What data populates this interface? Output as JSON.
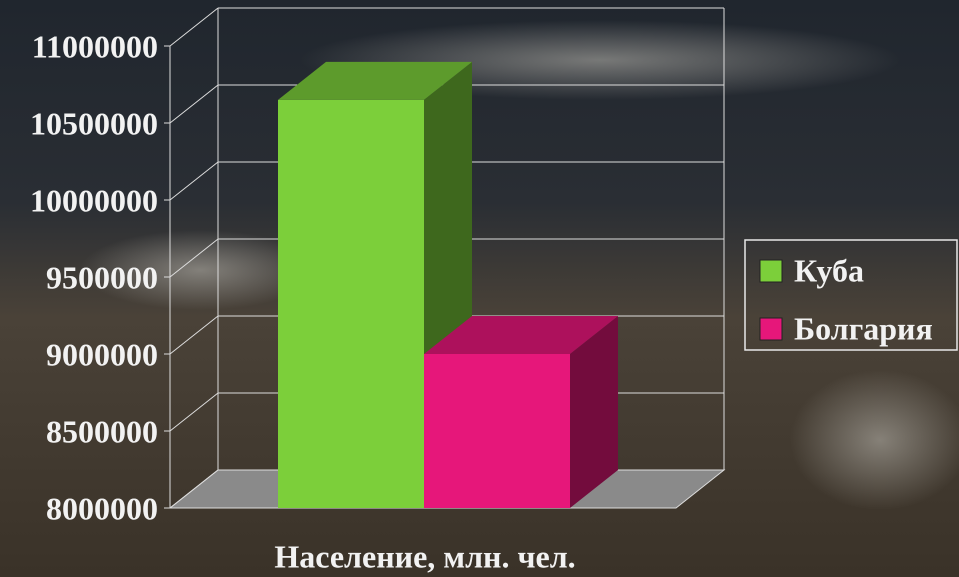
{
  "chart_data": {
    "type": "bar3d",
    "x_label": "Население, млн. чел.",
    "series": [
      {
        "name": "Куба",
        "color": "#7ccf3a",
        "values": [
          10650000
        ]
      },
      {
        "name": "Болгария",
        "color": "#e6177a",
        "values": [
          9000000
        ]
      }
    ],
    "ylim": [
      8000000,
      11000000
    ],
    "yticks": [
      8000000,
      8500000,
      9000000,
      9500000,
      10000000,
      10500000,
      11000000
    ],
    "grid": true,
    "legend": "right"
  }
}
